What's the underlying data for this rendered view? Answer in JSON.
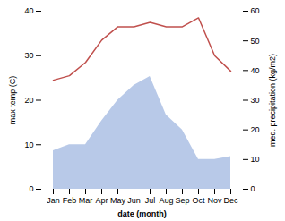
{
  "chart_data": {
    "type": "line",
    "categories": [
      "Jan",
      "Feb",
      "Mar",
      "Apr",
      "May",
      "Jun",
      "Jul",
      "Aug",
      "Sep",
      "Oct",
      "Nov",
      "Dec"
    ],
    "series": [
      {
        "type": "area",
        "color": "#b8c9e8",
        "axis": "y2",
        "values": [
          13,
          15,
          15,
          23,
          30,
          35,
          38,
          25,
          20,
          10,
          10,
          11
        ]
      },
      {
        "type": "line",
        "color": "#c0504d",
        "values": [
          24.5,
          25.5,
          28.5,
          33.5,
          36.5,
          36.5,
          37.5,
          36.5,
          36.5,
          38.5,
          30.0,
          26.5
        ]
      }
    ],
    "xlabel": "date (month)",
    "ylabel": "max temp (C)",
    "y2label": "med. precipitation (kg/m2)",
    "ylim": [
      0,
      40
    ],
    "yticks": [
      0,
      10,
      20,
      30,
      40
    ],
    "y2lim": [
      0,
      60
    ],
    "y2ticks": [
      0,
      10,
      20,
      30,
      40,
      50,
      60
    ],
    "grid": false
  }
}
